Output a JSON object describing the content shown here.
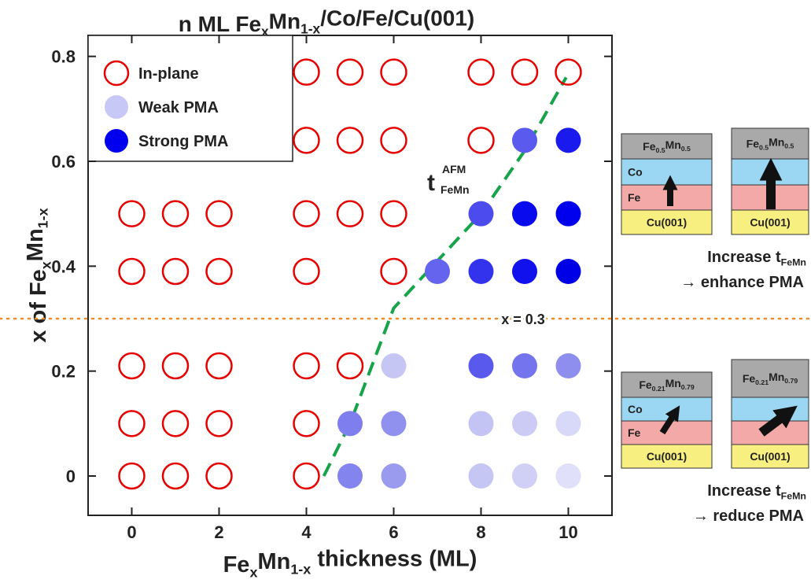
{
  "chart_data": {
    "type": "scatter",
    "title_parts": [
      "n ML Fe",
      "x",
      "Mn",
      "1-x",
      "/Co/Fe/Cu(001)"
    ],
    "xlabel_parts": [
      "Fe",
      "x",
      "Mn",
      "1-x",
      " thickness (ML)"
    ],
    "ylabel_parts": [
      "x of Fe",
      "x",
      "Mn",
      "1-x"
    ],
    "xlim": [
      -1,
      11
    ],
    "xticks": [
      0,
      2,
      4,
      6,
      8,
      10
    ],
    "ylim": [
      -0.075,
      0.84
    ],
    "yticks": [
      0,
      0.2,
      0.4,
      0.6,
      0.8
    ],
    "legend": "upper left",
    "series": [
      {
        "name": "In-plane",
        "marker": "open",
        "color": "#e60000",
        "x": [
          4,
          5,
          6,
          8,
          9,
          10,
          4,
          5,
          6,
          8,
          0,
          1,
          2,
          4,
          5,
          6,
          0,
          1,
          2,
          4,
          6,
          0,
          1,
          2,
          4,
          5,
          0,
          1,
          2,
          4,
          0,
          1,
          2,
          4
        ],
        "y": [
          0.77,
          0.77,
          0.77,
          0.77,
          0.77,
          0.77,
          0.64,
          0.64,
          0.64,
          0.64,
          0.5,
          0.5,
          0.5,
          0.5,
          0.5,
          0.5,
          0.39,
          0.39,
          0.39,
          0.39,
          0.39,
          0.21,
          0.21,
          0.21,
          0.21,
          0.21,
          0.1,
          0.1,
          0.1,
          0.1,
          0,
          0,
          0,
          0
        ]
      },
      {
        "name": "Weak PMA",
        "marker": "filled",
        "color": "#c8c8f6",
        "x": [
          9,
          8,
          7,
          6,
          8,
          9,
          10,
          5,
          6,
          8,
          9,
          10,
          5,
          6,
          8,
          9,
          10
        ],
        "y": [
          0.64,
          0.5,
          0.39,
          0.21,
          0.21,
          0.21,
          0.21,
          0.1,
          0.1,
          0.1,
          0.1,
          0.1,
          0,
          0,
          0,
          0,
          0
        ],
        "colors": [
          "#5a5aee",
          "#4c4cee",
          "#6464ee",
          "#c6c6f4",
          "#5959ee",
          "#7474ee",
          "#8e8eee",
          "#7e7eee",
          "#9090ee",
          "#c4c4f4",
          "#cbcbf6",
          "#d8d8f8",
          "#8484ee",
          "#9a9aee",
          "#c6c6f4",
          "#d0d0f6",
          "#e0e0fa"
        ]
      },
      {
        "name": "Strong PMA",
        "marker": "filled",
        "color": "#0000ee",
        "x": [
          10,
          9,
          10,
          8,
          9,
          10
        ],
        "y": [
          0.64,
          0.5,
          0.5,
          0.39,
          0.39,
          0.39
        ],
        "colors": [
          "#1a1aee",
          "#0a0aee",
          "#0000ee",
          "#3333ee",
          "#1111ee",
          "#0000e6"
        ]
      }
    ],
    "boundary": {
      "base": "t",
      "sup": "AFM",
      "sub": "FeMn",
      "color": "#17a34a",
      "x": [
        4.4,
        5,
        6,
        7,
        8,
        9,
        9.95
      ],
      "y": [
        0,
        0.1,
        0.32,
        0.41,
        0.5,
        0.62,
        0.76
      ]
    },
    "hline": {
      "y": 0.3,
      "label": "x = 0.3",
      "color": "#f08a24"
    }
  },
  "diagrams": [
    {
      "layers": [
        [
          "Fe",
          "0.5",
          "Mn",
          "0.5"
        ],
        [
          "Co"
        ],
        [
          "Fe"
        ],
        [
          "Cu(001)"
        ]
      ]
    },
    {
      "layers": [
        [
          "Fe",
          "0.5",
          "Mn",
          "0.5"
        ],
        [],
        [],
        [
          "Cu(001)"
        ]
      ]
    },
    {
      "layers": [
        [
          "Fe",
          "0.21",
          "Mn",
          "0.79"
        ],
        [
          "Co"
        ],
        [
          "Fe"
        ],
        [
          "Cu(001)"
        ]
      ]
    },
    {
      "layers": [
        [
          "Fe",
          "0.21",
          "Mn",
          "0.79"
        ],
        [],
        [],
        [
          "Cu(001)"
        ]
      ]
    }
  ],
  "captions": [
    {
      "line1": [
        "Increase t",
        "FeMn"
      ],
      "line2": "→ enhance PMA"
    },
    {
      "line1": [
        "Increase t",
        "FeMn"
      ],
      "line2": "→ reduce PMA"
    }
  ]
}
